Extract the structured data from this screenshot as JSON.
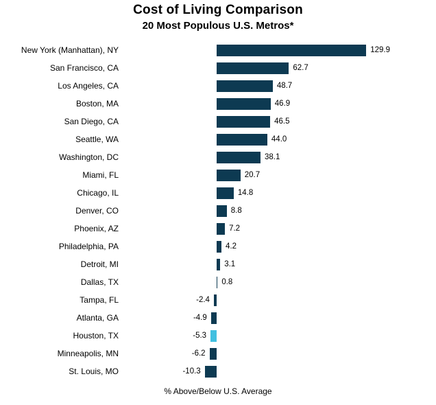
{
  "chart_data": {
    "type": "bar",
    "orientation": "horizontal",
    "title": "Cost of Living Comparison",
    "subtitle": "20 Most Populous U.S. Metros*",
    "xlabel": "% Above/Below U.S. Average",
    "categories": [
      "New York (Manhattan), NY",
      "San Francisco, CA",
      "Los Angeles, CA",
      "Boston, MA",
      "San Diego, CA",
      "Seattle, WA",
      "Washington, DC",
      "Miami, FL",
      "Chicago, IL",
      "Denver, CO",
      "Phoenix, AZ",
      "Philadelphia, PA",
      "Detroit, MI",
      "Dallas, TX",
      "Tampa, FL",
      "Atlanta, GA",
      "Houston, TX",
      "Minneapolis, MN",
      "St. Louis, MO"
    ],
    "values": [
      129.9,
      62.7,
      48.7,
      46.9,
      46.5,
      44.0,
      38.1,
      20.7,
      14.8,
      8.8,
      7.2,
      4.2,
      3.1,
      0.8,
      -2.4,
      -4.9,
      -5.3,
      -6.2,
      -10.3
    ],
    "bar_color": "#0d3a52",
    "highlight_color": "#41c0e0",
    "highlight_category": "Houston, TX",
    "xlim": [
      -15,
      140
    ],
    "grid": false,
    "legend": "none"
  }
}
